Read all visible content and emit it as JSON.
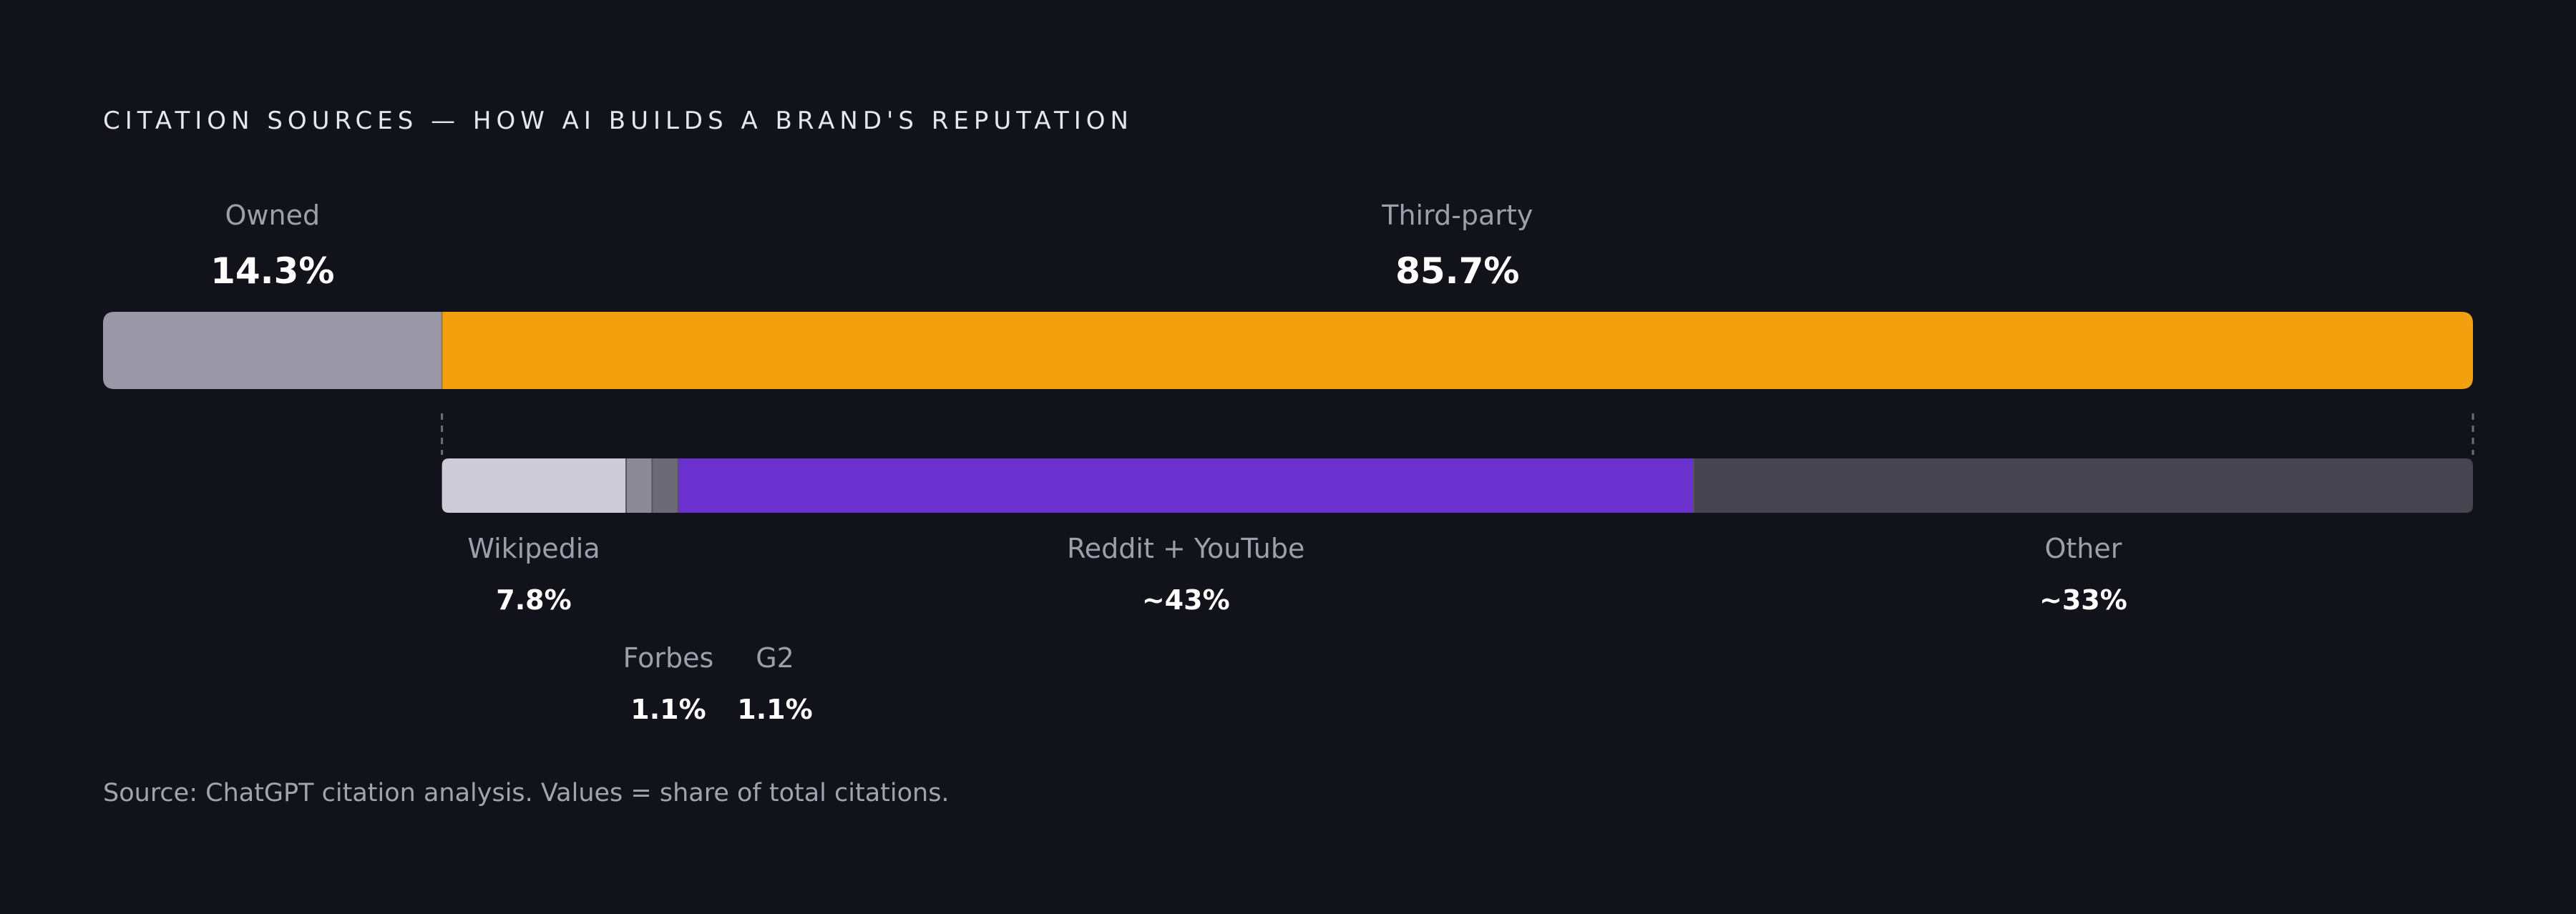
{
  "title": "CITATION SOURCES — HOW AI BUILDS A BRAND'S REPUTATION",
  "source_note": "Source: ChatGPT citation analysis. Values = share of total citations.",
  "chart_data": {
    "type": "bar",
    "orientation": "horizontal-stacked",
    "title": "CITATION SOURCES — HOW AI BUILDS A BRAND'S REPUTATION",
    "unit": "% of total citations",
    "top_bar": {
      "segments": [
        {
          "label": "Owned",
          "value": 14.3,
          "value_label": "14.3%",
          "color": "#9a98a6"
        },
        {
          "label": "Third-party",
          "value": 85.7,
          "value_label": "85.7%",
          "color": "#f39f0e"
        }
      ]
    },
    "breakdown_bar": {
      "parent": "Third-party",
      "segments": [
        {
          "label": "Wikipedia",
          "value": 7.8,
          "value_label": "7.8%",
          "color": "#cecbd9"
        },
        {
          "label": "Forbes",
          "value": 1.1,
          "value_label": "1.1%",
          "color": "#8b8a96"
        },
        {
          "label": "G2",
          "value": 1.1,
          "value_label": "1.1%",
          "color": "#6b6a75"
        },
        {
          "label": "Reddit + YouTube",
          "value": 43,
          "value_label": "~43%",
          "color": "#6a31cf"
        },
        {
          "label": "Other",
          "value": 33,
          "value_label": "~33%",
          "color": "#46444f"
        }
      ]
    }
  }
}
